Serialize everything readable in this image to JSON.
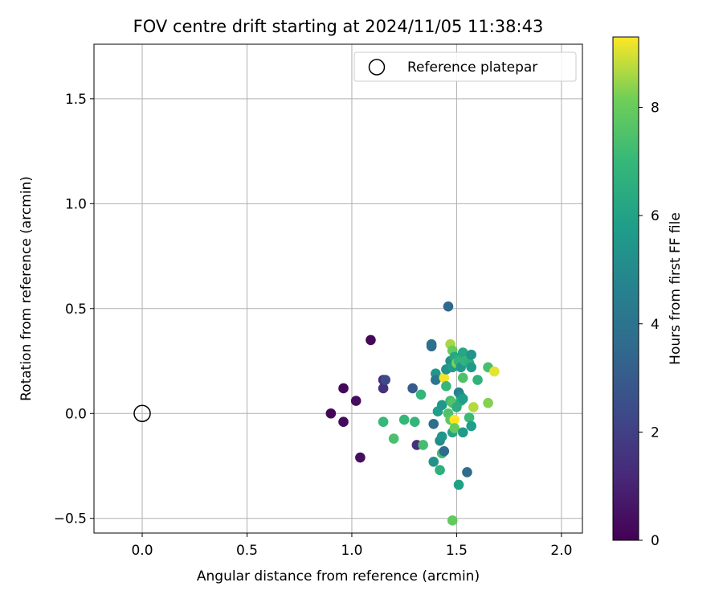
{
  "chart_data": {
    "type": "scatter",
    "title": "FOV centre drift starting at 2024/11/05 11:38:43",
    "xlabel": "Angular distance from reference (arcmin)",
    "ylabel": "Rotation from reference (arcmin)",
    "xlim": [
      -0.23,
      2.1
    ],
    "ylim": [
      -0.57,
      1.76
    ],
    "x_ticks": [
      0.0,
      0.5,
      1.0,
      1.5,
      2.0
    ],
    "x_tick_labels": [
      "0.0",
      "0.5",
      "1.0",
      "1.5",
      "2.0"
    ],
    "y_ticks": [
      -0.5,
      0.0,
      0.5,
      1.0,
      1.5
    ],
    "y_tick_labels": [
      "−0.5",
      "0.0",
      "0.5",
      "1.0",
      "1.5"
    ],
    "grid": true,
    "legend": {
      "location": "top-right",
      "label": "Reference platepar"
    },
    "reference_point": {
      "x": 0.0,
      "y": 0.0
    },
    "colorbar": {
      "label": "Hours from first FF file",
      "range": [
        0,
        9.3
      ],
      "ticks": [
        0,
        2,
        4,
        6,
        8
      ],
      "tick_labels": [
        "0",
        "2",
        "4",
        "6",
        "8"
      ],
      "colormap": "viridis"
    },
    "points": [
      {
        "x": 0.9,
        "y": 0.0,
        "c": 0.1
      },
      {
        "x": 0.96,
        "y": 0.12,
        "c": 0.2
      },
      {
        "x": 0.96,
        "y": -0.04,
        "c": 0.3
      },
      {
        "x": 1.02,
        "y": 0.06,
        "c": 0.3
      },
      {
        "x": 1.04,
        "y": -0.21,
        "c": 0.4
      },
      {
        "x": 1.09,
        "y": 0.35,
        "c": 0.2
      },
      {
        "x": 1.15,
        "y": 0.16,
        "c": 1.2
      },
      {
        "x": 1.15,
        "y": 0.12,
        "c": 1.5
      },
      {
        "x": 1.16,
        "y": 0.16,
        "c": 2.4
      },
      {
        "x": 1.29,
        "y": 0.12,
        "c": 3.0
      },
      {
        "x": 1.31,
        "y": -0.15,
        "c": 1.4
      },
      {
        "x": 1.33,
        "y": 0.09,
        "c": 6.9
      },
      {
        "x": 1.15,
        "y": -0.04,
        "c": 7.0
      },
      {
        "x": 1.2,
        "y": -0.12,
        "c": 7.4
      },
      {
        "x": 1.25,
        "y": -0.03,
        "c": 7.0
      },
      {
        "x": 1.3,
        "y": -0.04,
        "c": 6.9
      },
      {
        "x": 1.34,
        "y": -0.15,
        "c": 7.3
      },
      {
        "x": 1.38,
        "y": 0.32,
        "c": 3.6
      },
      {
        "x": 1.38,
        "y": 0.33,
        "c": 3.9
      },
      {
        "x": 1.39,
        "y": -0.05,
        "c": 3.8
      },
      {
        "x": 1.39,
        "y": -0.23,
        "c": 5.3
      },
      {
        "x": 1.4,
        "y": 0.19,
        "c": 5.5
      },
      {
        "x": 1.4,
        "y": 0.16,
        "c": 4.1
      },
      {
        "x": 1.41,
        "y": 0.01,
        "c": 5.8
      },
      {
        "x": 1.42,
        "y": -0.13,
        "c": 5.0
      },
      {
        "x": 1.42,
        "y": -0.27,
        "c": 6.6
      },
      {
        "x": 1.43,
        "y": 0.04,
        "c": 5.6
      },
      {
        "x": 1.43,
        "y": -0.11,
        "c": 5.5
      },
      {
        "x": 1.43,
        "y": -0.19,
        "c": 7.3
      },
      {
        "x": 1.44,
        "y": 0.17,
        "c": 9.2
      },
      {
        "x": 1.44,
        "y": -0.18,
        "c": 3.6
      },
      {
        "x": 1.45,
        "y": 0.13,
        "c": 7.0
      },
      {
        "x": 1.45,
        "y": 0.21,
        "c": 5.3
      },
      {
        "x": 1.46,
        "y": 0.51,
        "c": 3.5
      },
      {
        "x": 1.46,
        "y": 0.0,
        "c": 7.5
      },
      {
        "x": 1.47,
        "y": 0.33,
        "c": 8.6
      },
      {
        "x": 1.47,
        "y": 0.25,
        "c": 5.2
      },
      {
        "x": 1.47,
        "y": 0.06,
        "c": 7.2
      },
      {
        "x": 1.47,
        "y": -0.03,
        "c": 7.8
      },
      {
        "x": 1.48,
        "y": 0.3,
        "c": 8.0
      },
      {
        "x": 1.48,
        "y": 0.22,
        "c": 5.8
      },
      {
        "x": 1.48,
        "y": 0.05,
        "c": 7.6
      },
      {
        "x": 1.48,
        "y": -0.09,
        "c": 6.0
      },
      {
        "x": 1.48,
        "y": -0.51,
        "c": 7.9
      },
      {
        "x": 1.49,
        "y": 0.27,
        "c": 6.3
      },
      {
        "x": 1.49,
        "y": -0.03,
        "c": 9.3
      },
      {
        "x": 1.49,
        "y": -0.07,
        "c": 8.0
      },
      {
        "x": 1.5,
        "y": 0.24,
        "c": 8.3
      },
      {
        "x": 1.5,
        "y": 0.03,
        "c": 6.5
      },
      {
        "x": 1.51,
        "y": 0.25,
        "c": 6.8
      },
      {
        "x": 1.51,
        "y": 0.1,
        "c": 4.6
      },
      {
        "x": 1.51,
        "y": -0.34,
        "c": 5.9
      },
      {
        "x": 1.52,
        "y": 0.22,
        "c": 5.6
      },
      {
        "x": 1.52,
        "y": 0.08,
        "c": 5.0
      },
      {
        "x": 1.52,
        "y": 0.06,
        "c": 6.4
      },
      {
        "x": 1.53,
        "y": 0.29,
        "c": 6.2
      },
      {
        "x": 1.53,
        "y": 0.17,
        "c": 7.5
      },
      {
        "x": 1.53,
        "y": 0.07,
        "c": 5.8
      },
      {
        "x": 1.53,
        "y": -0.09,
        "c": 5.7
      },
      {
        "x": 1.54,
        "y": 0.25,
        "c": 6.8
      },
      {
        "x": 1.55,
        "y": -0.28,
        "c": 3.7
      },
      {
        "x": 1.56,
        "y": 0.24,
        "c": 6.6
      },
      {
        "x": 1.56,
        "y": -0.02,
        "c": 7.1
      },
      {
        "x": 1.57,
        "y": 0.28,
        "c": 5.4
      },
      {
        "x": 1.57,
        "y": 0.22,
        "c": 5.7
      },
      {
        "x": 1.57,
        "y": -0.06,
        "c": 5.8
      },
      {
        "x": 1.58,
        "y": 0.03,
        "c": 8.7
      },
      {
        "x": 1.6,
        "y": 0.16,
        "c": 6.7
      },
      {
        "x": 1.65,
        "y": 0.22,
        "c": 7.4
      },
      {
        "x": 1.65,
        "y": 0.05,
        "c": 8.3
      },
      {
        "x": 1.68,
        "y": 0.2,
        "c": 9.1
      }
    ]
  }
}
